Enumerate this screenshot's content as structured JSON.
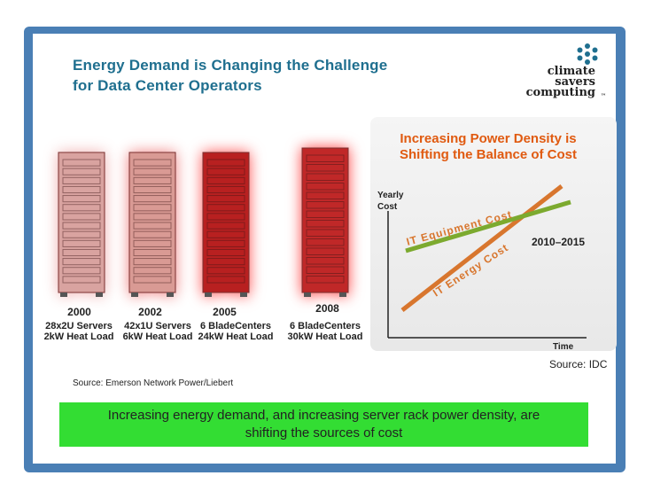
{
  "title": {
    "line1": "Energy Demand is Changing the Challenge",
    "line2": "for Data Center Operators"
  },
  "logo": {
    "line1": "climate",
    "line2": "savers",
    "line3": "computing",
    "mark": "™",
    "icon": "asterisk-flower-icon",
    "color": "#1f6f8f"
  },
  "racks": [
    {
      "year": "2000",
      "spec1": "28x2U Servers",
      "spec2": "2kW Heat Load",
      "color": "#d9a3a0",
      "glow": "#f0b0b0"
    },
    {
      "year": "2002",
      "spec1": "42x1U Servers",
      "spec2": "6kW Heat Load",
      "color": "#d99a94",
      "glow": "#f08080"
    },
    {
      "year": "2005",
      "spec1": "6 BladeCenters",
      "spec2": "24kW Heat Load",
      "color": "#b82020",
      "glow": "#ff5050"
    },
    {
      "year": "2008",
      "spec1": "6 BladeCenters",
      "spec2": "30kW Heat Load",
      "color": "#c02828",
      "glow": "#ff4040"
    }
  ],
  "source_left": "Source: Emerson Network Power/Liebert",
  "chart_data": {
    "type": "line",
    "title": "Increasing Power Density is Shifting the Balance of Cost",
    "ylabel": "Yearly Cost",
    "xlabel": "Time",
    "annotation": "2010–2015",
    "series": [
      {
        "name": "IT Equipment Cost",
        "color": "#7caa2f"
      },
      {
        "name": "IT Energy Cost",
        "color": "#d8762e"
      }
    ],
    "source": "Source: IDC"
  },
  "banner": {
    "line1": "Increasing energy demand, and increasing server rack power density, are",
    "line2": "shifting the sources of cost"
  }
}
